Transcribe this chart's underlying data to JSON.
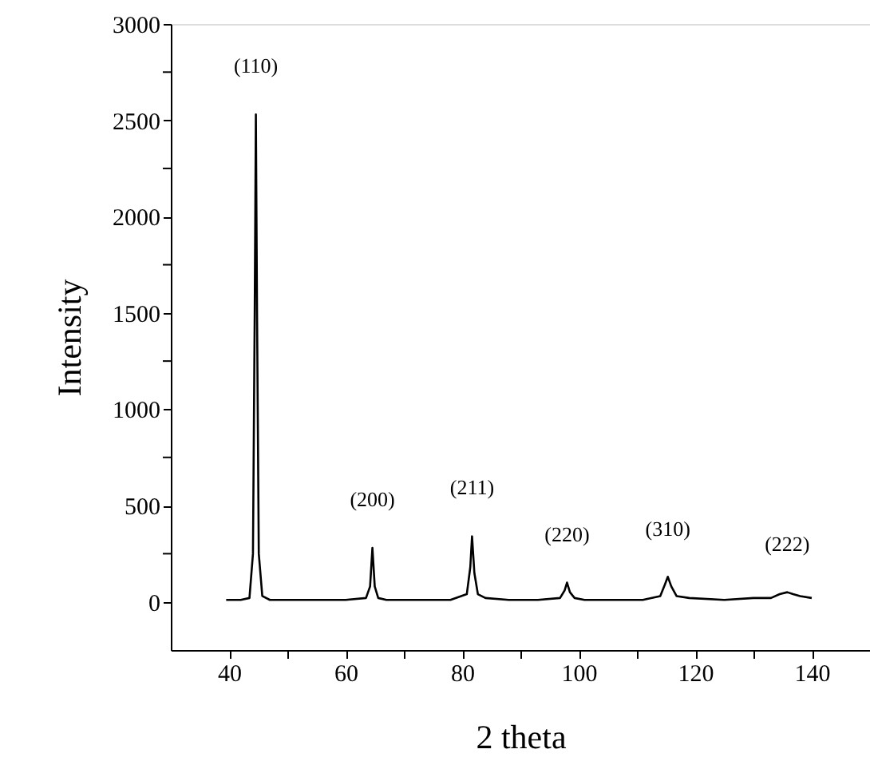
{
  "chart_data": {
    "type": "line",
    "xlabel": "2 theta",
    "ylabel": "Intensity",
    "xlim": [
      30,
      150
    ],
    "ylim": [
      -250,
      3000
    ],
    "xticks": [
      40,
      {
        "value": 50,
        "label": null
      },
      60,
      {
        "value": 70,
        "label": null
      },
      80,
      {
        "value": 90,
        "label": null
      },
      100,
      {
        "value": 110,
        "label": null
      },
      120,
      {
        "value": 130,
        "label": null
      },
      140
    ],
    "yticks": [
      0,
      {
        "value": 250,
        "label": null
      },
      500,
      {
        "value": 750,
        "label": null
      },
      1000,
      {
        "value": 1250,
        "label": null
      },
      1500,
      {
        "value": 1750,
        "label": null
      },
      2000,
      {
        "value": 2250,
        "label": null
      },
      2500,
      {
        "value": 2750,
        "label": null
      },
      3000
    ],
    "grid": false,
    "marker": "none",
    "line_style": "solid",
    "series": [
      {
        "color": "#000000",
        "x": [
          39.5,
          40,
          42,
          43.5,
          44.1,
          44.4,
          44.6,
          44.8,
          45.1,
          45.7,
          47,
          50,
          55,
          60,
          63.5,
          64.2,
          64.6,
          65.0,
          65.6,
          67,
          72,
          78,
          80.8,
          81.4,
          81.7,
          82.1,
          82.7,
          84,
          88,
          93,
          96.8,
          97.6,
          98.0,
          98.5,
          99.3,
          101,
          106,
          111,
          114,
          114.8,
          115.3,
          115.9,
          116.8,
          119,
          125,
          130,
          133,
          134.5,
          135.8,
          136.8,
          138,
          140
        ],
        "values": [
          10,
          10,
          10,
          20,
          250,
          1500,
          2530,
          1500,
          250,
          30,
          10,
          10,
          10,
          10,
          20,
          80,
          280,
          80,
          20,
          10,
          10,
          10,
          40,
          180,
          340,
          150,
          40,
          20,
          10,
          10,
          20,
          60,
          100,
          50,
          20,
          10,
          10,
          10,
          30,
          90,
          130,
          80,
          30,
          20,
          10,
          20,
          20,
          40,
          50,
          40,
          30,
          20
        ]
      }
    ],
    "annotations": [
      {
        "text": "(110)",
        "x": 44.6,
        "y": 2530
      },
      {
        "text": "(200)",
        "x": 64.6,
        "y": 281
      },
      {
        "text": "(211)",
        "x": 81.7,
        "y": 341
      },
      {
        "text": "(220)",
        "x": 98.0,
        "y": 98
      },
      {
        "text": "(310)",
        "x": 115.3,
        "y": 126
      },
      {
        "text": "(222)",
        "x": 135.8,
        "y": 48
      }
    ]
  }
}
